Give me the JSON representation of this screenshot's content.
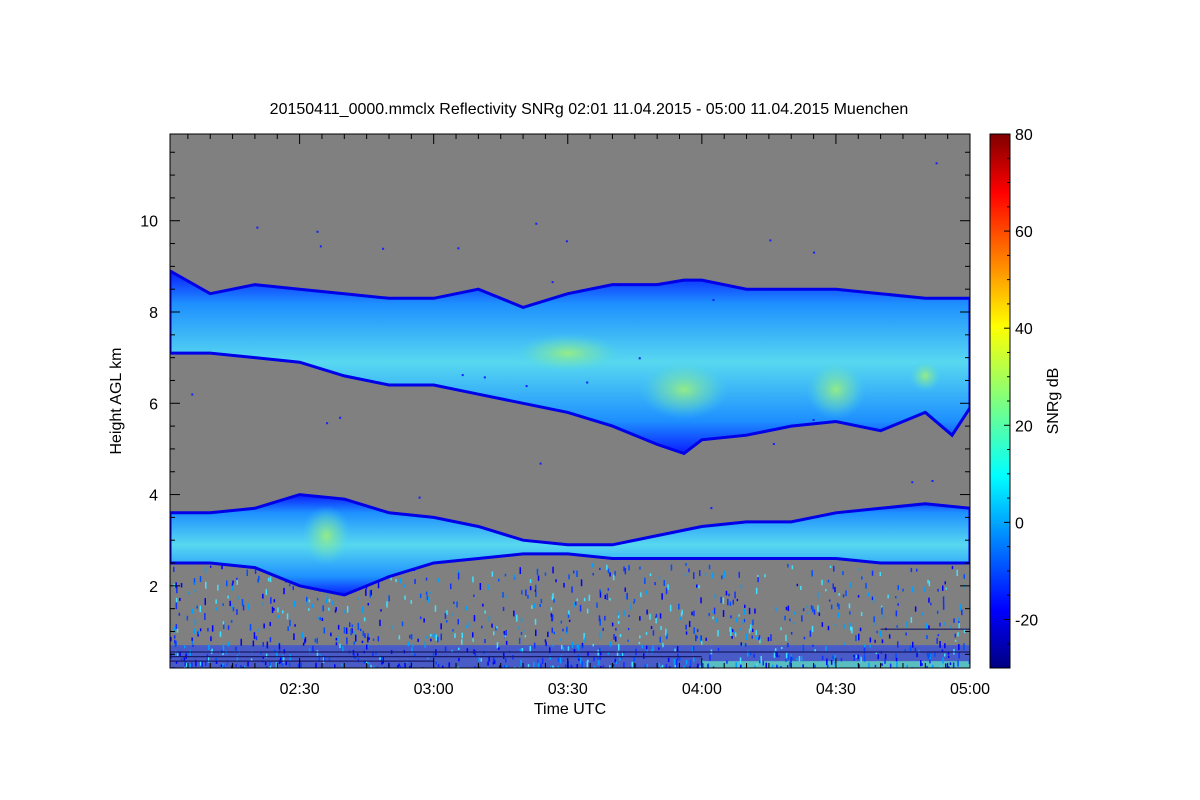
{
  "chart_data": {
    "type": "heatmap",
    "title": "20150411_0000.mmclx Reflectivity SNRg   02:01 11.04.2015 - 05:00 11.04.2015 Muenchen",
    "xlabel": "Time UTC",
    "ylabel": "Height AGL km",
    "colorbar_label": "SNRg dB",
    "x_range_minutes": [
      121,
      300
    ],
    "y_range_km": [
      0.2,
      11.9
    ],
    "x_ticks": [
      {
        "label": "02:30",
        "value": 150
      },
      {
        "label": "03:00",
        "value": 180
      },
      {
        "label": "03:30",
        "value": 210
      },
      {
        "label": "04:00",
        "value": 240
      },
      {
        "label": "04:30",
        "value": 270
      },
      {
        "label": "05:00",
        "value": 300
      }
    ],
    "y_ticks": [
      {
        "label": "2",
        "value": 2
      },
      {
        "label": "4",
        "value": 4
      },
      {
        "label": "6",
        "value": 6
      },
      {
        "label": "8",
        "value": 8
      },
      {
        "label": "10",
        "value": 10
      }
    ],
    "colorbar_range": [
      -30,
      80
    ],
    "colorbar_ticks": [
      {
        "label": "-20",
        "value": -20
      },
      {
        "label": "0",
        "value": 0
      },
      {
        "label": "20",
        "value": 20
      },
      {
        "label": "40",
        "value": 40
      },
      {
        "label": "60",
        "value": 60
      },
      {
        "label": "80",
        "value": 80
      }
    ],
    "colormap": "jet",
    "no_signal_color": "#808080",
    "upper_layer": {
      "time": [
        121,
        130,
        140,
        150,
        160,
        170,
        180,
        190,
        200,
        210,
        220,
        230,
        236,
        240,
        250,
        260,
        270,
        280,
        290,
        296,
        300
      ],
      "top_km": [
        8.9,
        8.4,
        8.6,
        8.5,
        8.4,
        8.3,
        8.3,
        8.5,
        8.1,
        8.4,
        8.6,
        8.6,
        8.7,
        8.7,
        8.5,
        8.5,
        8.5,
        8.4,
        8.3,
        8.3,
        8.3
      ],
      "bottom_km": [
        7.1,
        7.1,
        7.0,
        6.9,
        6.6,
        6.4,
        6.4,
        6.2,
        6.0,
        5.8,
        5.5,
        5.1,
        4.9,
        5.2,
        5.3,
        5.5,
        5.6,
        5.4,
        5.8,
        5.3,
        5.9
      ],
      "peak_snr_db": 20
    },
    "lower_layer": {
      "time": [
        121,
        130,
        140,
        150,
        160,
        170,
        180,
        190,
        200,
        210,
        220,
        230,
        240,
        250,
        260,
        270,
        280,
        290,
        300
      ],
      "top_km": [
        3.6,
        3.6,
        3.7,
        4.0,
        3.9,
        3.6,
        3.5,
        3.3,
        3.0,
        2.9,
        2.9,
        3.1,
        3.3,
        3.4,
        3.4,
        3.6,
        3.7,
        3.8,
        3.7
      ],
      "bottom_km": [
        2.5,
        2.5,
        2.4,
        2.0,
        1.8,
        2.2,
        2.5,
        2.6,
        2.7,
        2.7,
        2.6,
        2.6,
        2.6,
        2.6,
        2.6,
        2.6,
        2.5,
        2.5,
        2.5
      ],
      "peak_snr_db": 20
    }
  }
}
